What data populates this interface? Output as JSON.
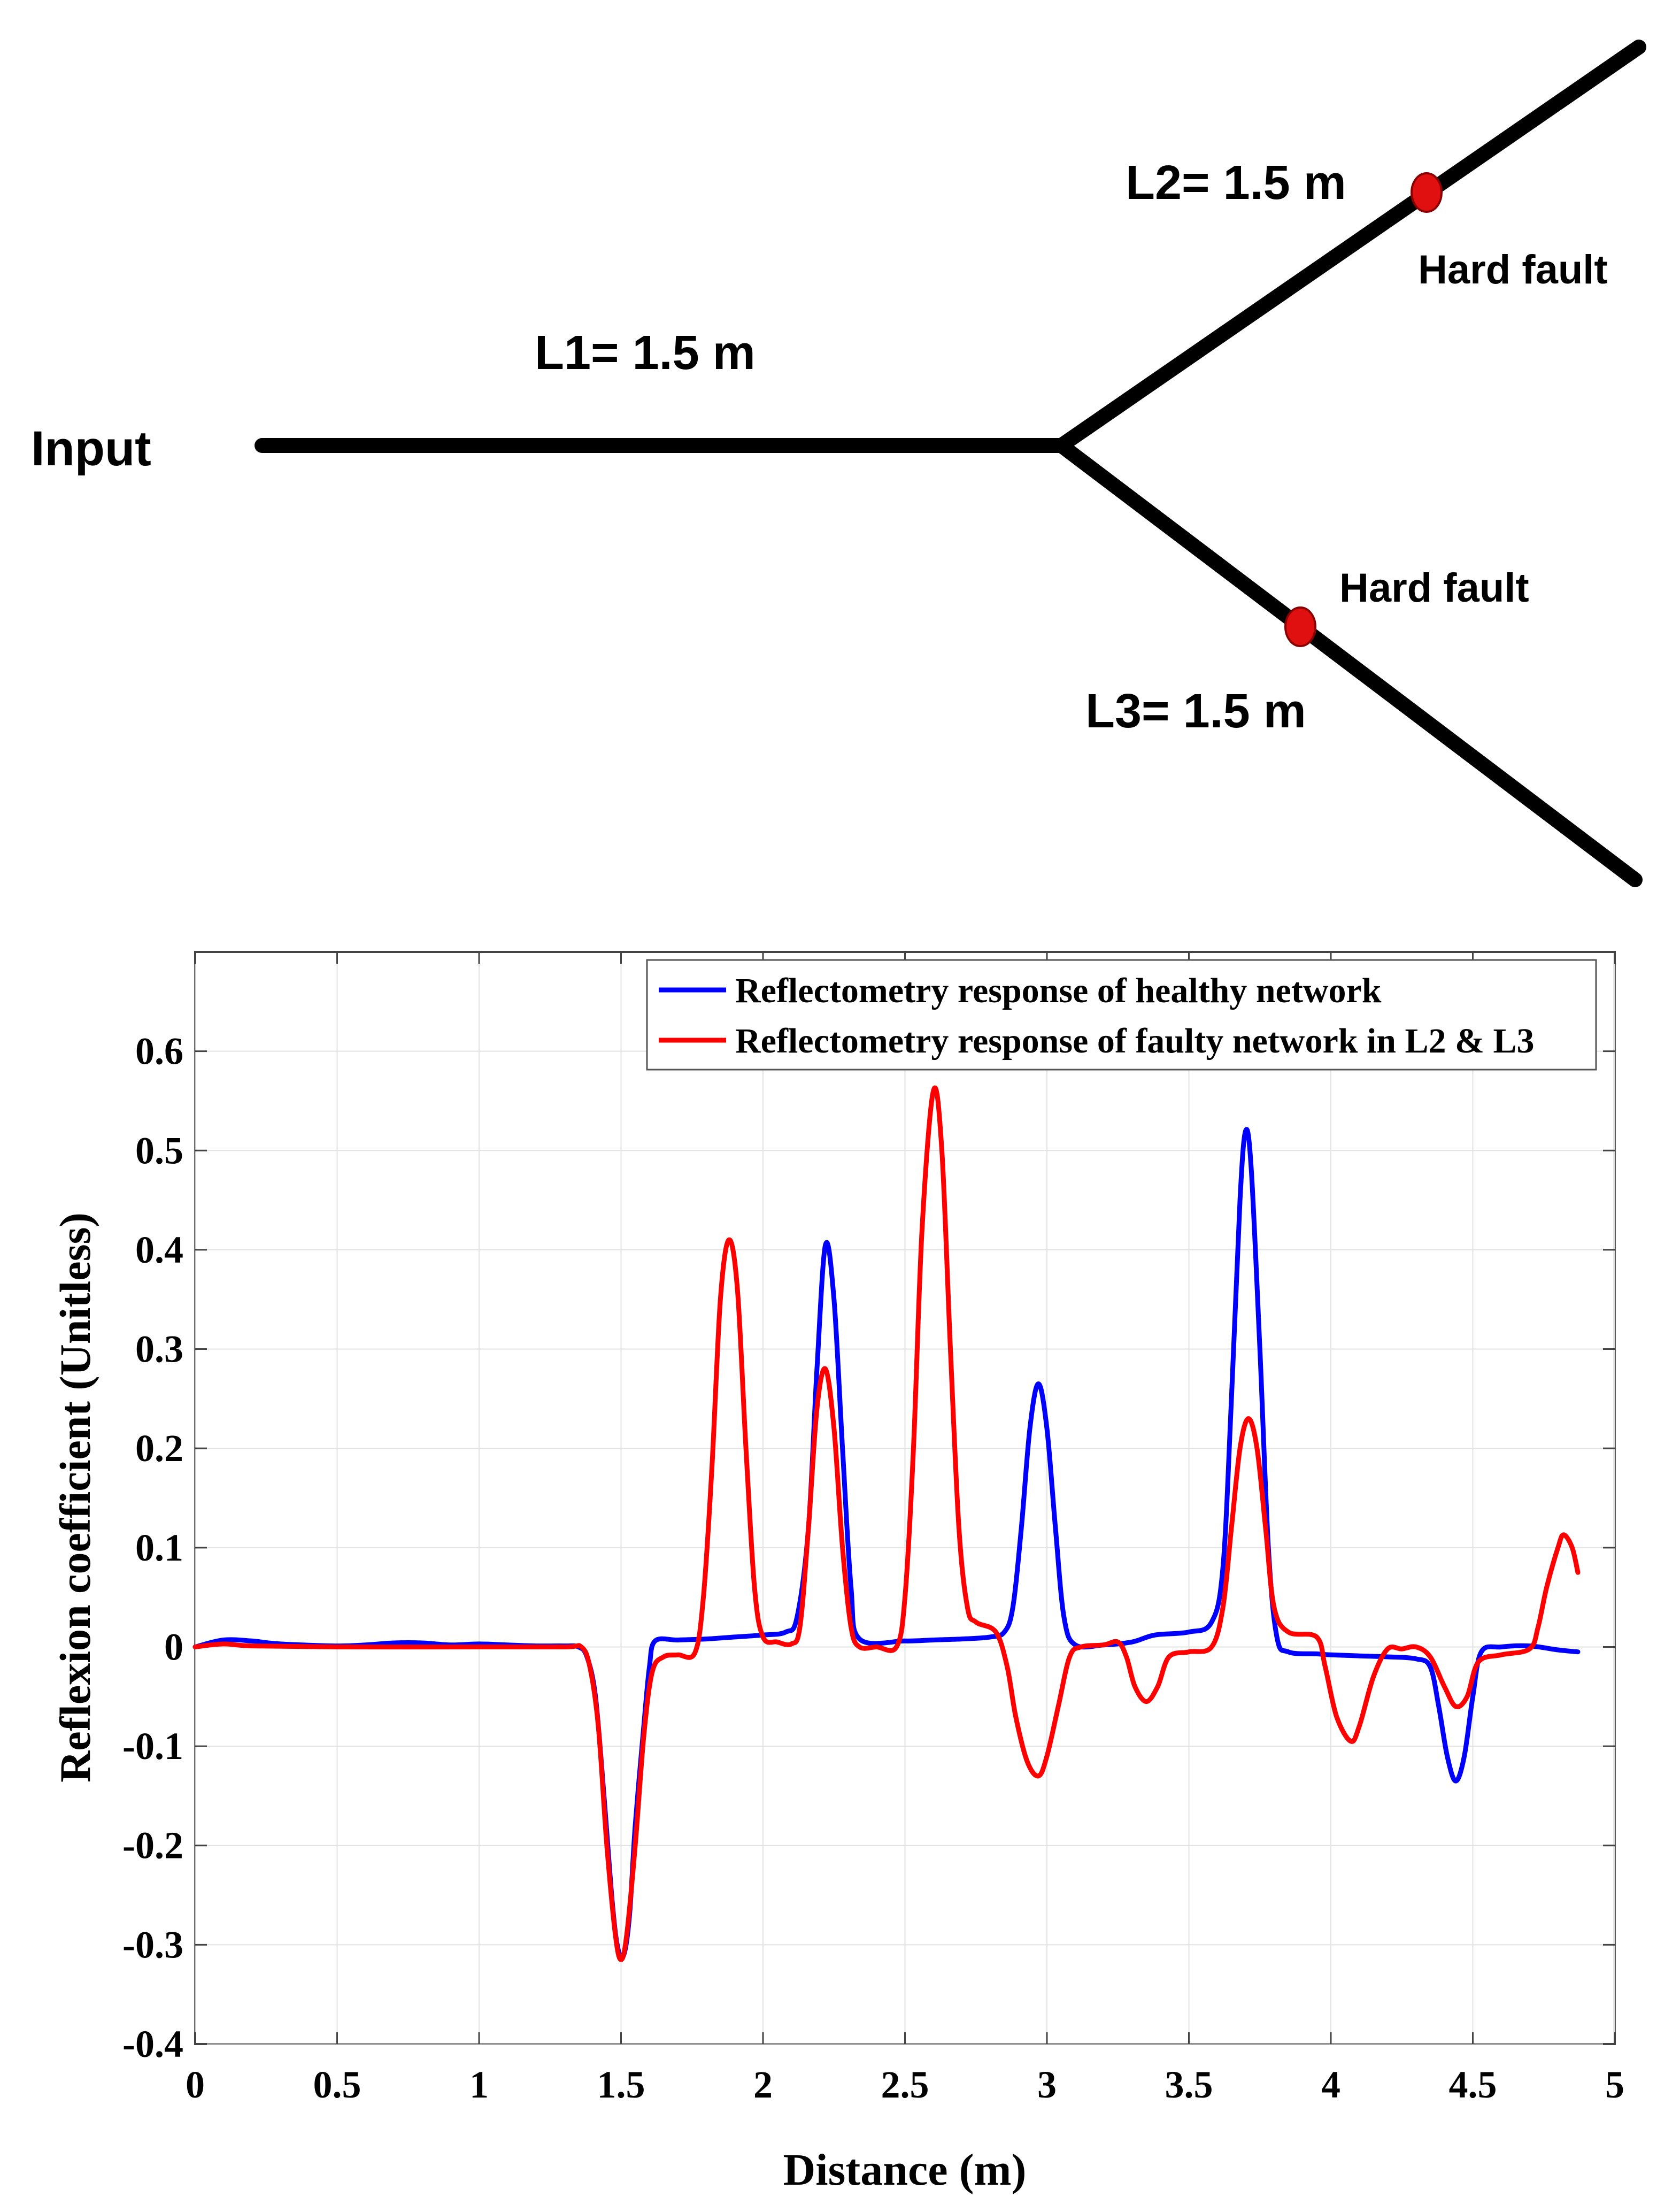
{
  "diagram": {
    "input_label": "Input",
    "segments": [
      {
        "id": "L1",
        "label": "L1= 1.5 m"
      },
      {
        "id": "L2",
        "label": "L2= 1.5 m"
      },
      {
        "id": "L3",
        "label": "L3= 1.5 m"
      }
    ],
    "faults": [
      {
        "branch": "L2",
        "label": "Hard fault"
      },
      {
        "branch": "L3",
        "label": "Hard fault"
      }
    ],
    "fault_color": "#e01010",
    "line_color": "#000000"
  },
  "chart_data": {
    "type": "line",
    "xlabel": "Distance (m)",
    "ylabel": "Reflexion coefficient (Unitless)",
    "xlim": [
      0,
      5
    ],
    "ylim": [
      -0.4,
      0.7
    ],
    "xticks": [
      0,
      0.5,
      1,
      1.5,
      2,
      2.5,
      3,
      3.5,
      4,
      4.5,
      5
    ],
    "xtick_labels": [
      "0",
      "0.5",
      "1",
      "1.5",
      "2",
      "2.5",
      "3",
      "3.5",
      "4",
      "4.5",
      "5"
    ],
    "yticks": [
      -0.4,
      -0.3,
      -0.2,
      -0.1,
      0,
      0.1,
      0.2,
      0.3,
      0.4,
      0.5,
      0.6
    ],
    "ytick_labels": [
      "-0.4",
      "-0.3",
      "-0.2",
      "-0.1",
      "0",
      "0.1",
      "0.2",
      "0.3",
      "0.4",
      "0.5",
      "0.6"
    ],
    "grid": true,
    "legend_position": "top-right",
    "series": [
      {
        "name": "Reflectometry response of healthy network",
        "color": "#0000ff",
        "points": [
          [
            0,
            0
          ],
          [
            0.1,
            0.007
          ],
          [
            0.2,
            0.006
          ],
          [
            0.3,
            0.003
          ],
          [
            0.5,
            0.001
          ],
          [
            0.6,
            0.002
          ],
          [
            0.7,
            0.004
          ],
          [
            0.8,
            0.004
          ],
          [
            0.9,
            0.002
          ],
          [
            1.0,
            0.003
          ],
          [
            1.1,
            0.002
          ],
          [
            1.2,
            0.001
          ],
          [
            1.3,
            0.001
          ],
          [
            1.35,
            0
          ],
          [
            1.38,
            -0.01
          ],
          [
            1.41,
            -0.05
          ],
          [
            1.44,
            -0.15
          ],
          [
            1.47,
            -0.26
          ],
          [
            1.49,
            -0.305
          ],
          [
            1.51,
            -0.31
          ],
          [
            1.53,
            -0.27
          ],
          [
            1.55,
            -0.18
          ],
          [
            1.58,
            -0.08
          ],
          [
            1.6,
            -0.02
          ],
          [
            1.62,
            0.006
          ],
          [
            1.7,
            0.007
          ],
          [
            1.8,
            0.008
          ],
          [
            1.9,
            0.01
          ],
          [
            2.0,
            0.012
          ],
          [
            2.08,
            0.015
          ],
          [
            2.12,
            0.03
          ],
          [
            2.16,
            0.12
          ],
          [
            2.19,
            0.28
          ],
          [
            2.22,
            0.405
          ],
          [
            2.25,
            0.35
          ],
          [
            2.28,
            0.2
          ],
          [
            2.31,
            0.06
          ],
          [
            2.34,
            0.008
          ],
          [
            2.5,
            0.006
          ],
          [
            2.6,
            0.007
          ],
          [
            2.7,
            0.008
          ],
          [
            2.8,
            0.01
          ],
          [
            2.85,
            0.015
          ],
          [
            2.88,
            0.04
          ],
          [
            2.91,
            0.12
          ],
          [
            2.94,
            0.22
          ],
          [
            2.97,
            0.265
          ],
          [
            3.0,
            0.22
          ],
          [
            3.03,
            0.12
          ],
          [
            3.06,
            0.03
          ],
          [
            3.1,
            0.002
          ],
          [
            3.2,
            0.002
          ],
          [
            3.3,
            0.005
          ],
          [
            3.38,
            0.012
          ],
          [
            3.5,
            0.015
          ],
          [
            3.58,
            0.025
          ],
          [
            3.62,
            0.08
          ],
          [
            3.65,
            0.25
          ],
          [
            3.68,
            0.45
          ],
          [
            3.7,
            0.52
          ],
          [
            3.72,
            0.48
          ],
          [
            3.75,
            0.3
          ],
          [
            3.78,
            0.1
          ],
          [
            3.81,
            0.01
          ],
          [
            3.85,
            -0.005
          ],
          [
            3.95,
            -0.007
          ],
          [
            4.0,
            -0.008
          ],
          [
            4.1,
            -0.009
          ],
          [
            4.2,
            -0.01
          ],
          [
            4.3,
            -0.012
          ],
          [
            4.35,
            -0.02
          ],
          [
            4.38,
            -0.06
          ],
          [
            4.41,
            -0.11
          ],
          [
            4.44,
            -0.135
          ],
          [
            4.47,
            -0.11
          ],
          [
            4.5,
            -0.05
          ],
          [
            4.53,
            -0.005
          ],
          [
            4.6,
            0
          ],
          [
            4.7,
            0.001
          ],
          [
            4.8,
            -0.003
          ],
          [
            4.87,
            -0.005
          ]
        ]
      },
      {
        "name": "Reflectometry response of faulty network in L2 & L3",
        "color": "#ff0000",
        "points": [
          [
            0,
            0
          ],
          [
            0.1,
            0.003
          ],
          [
            0.2,
            0.001
          ],
          [
            0.5,
            0
          ],
          [
            1.0,
            0
          ],
          [
            1.3,
            0
          ],
          [
            1.36,
            0
          ],
          [
            1.39,
            -0.02
          ],
          [
            1.42,
            -0.08
          ],
          [
            1.45,
            -0.2
          ],
          [
            1.48,
            -0.29
          ],
          [
            1.5,
            -0.315
          ],
          [
            1.52,
            -0.29
          ],
          [
            1.55,
            -0.2
          ],
          [
            1.58,
            -0.09
          ],
          [
            1.61,
            -0.025
          ],
          [
            1.65,
            -0.01
          ],
          [
            1.7,
            -0.008
          ],
          [
            1.76,
            -0.006
          ],
          [
            1.79,
            0.05
          ],
          [
            1.82,
            0.18
          ],
          [
            1.85,
            0.35
          ],
          [
            1.88,
            0.41
          ],
          [
            1.91,
            0.36
          ],
          [
            1.94,
            0.2
          ],
          [
            1.97,
            0.06
          ],
          [
            2.0,
            0.01
          ],
          [
            2.05,
            0.005
          ],
          [
            2.1,
            0.003
          ],
          [
            2.13,
            0.02
          ],
          [
            2.16,
            0.12
          ],
          [
            2.19,
            0.24
          ],
          [
            2.22,
            0.28
          ],
          [
            2.25,
            0.22
          ],
          [
            2.28,
            0.1
          ],
          [
            2.31,
            0.02
          ],
          [
            2.34,
            0
          ],
          [
            2.4,
            0
          ],
          [
            2.47,
            0
          ],
          [
            2.5,
            0.05
          ],
          [
            2.53,
            0.2
          ],
          [
            2.56,
            0.42
          ],
          [
            2.6,
            0.56
          ],
          [
            2.63,
            0.5
          ],
          [
            2.66,
            0.3
          ],
          [
            2.69,
            0.12
          ],
          [
            2.72,
            0.04
          ],
          [
            2.75,
            0.025
          ],
          [
            2.82,
            0.015
          ],
          [
            2.86,
            -0.02
          ],
          [
            2.89,
            -0.07
          ],
          [
            2.93,
            -0.115
          ],
          [
            2.97,
            -0.13
          ],
          [
            3.0,
            -0.11
          ],
          [
            3.04,
            -0.06
          ],
          [
            3.08,
            -0.01
          ],
          [
            3.12,
            0
          ],
          [
            3.2,
            0.002
          ],
          [
            3.25,
            0.005
          ],
          [
            3.28,
            -0.01
          ],
          [
            3.31,
            -0.04
          ],
          [
            3.35,
            -0.055
          ],
          [
            3.39,
            -0.04
          ],
          [
            3.43,
            -0.01
          ],
          [
            3.5,
            -0.005
          ],
          [
            3.58,
            0
          ],
          [
            3.62,
            0.04
          ],
          [
            3.65,
            0.12
          ],
          [
            3.68,
            0.2
          ],
          [
            3.71,
            0.23
          ],
          [
            3.74,
            0.2
          ],
          [
            3.77,
            0.12
          ],
          [
            3.8,
            0.04
          ],
          [
            3.85,
            0.015
          ],
          [
            3.95,
            0.01
          ],
          [
            3.98,
            -0.02
          ],
          [
            4.02,
            -0.07
          ],
          [
            4.07,
            -0.095
          ],
          [
            4.1,
            -0.08
          ],
          [
            4.15,
            -0.03
          ],
          [
            4.2,
            -0.002
          ],
          [
            4.25,
            -0.002
          ],
          [
            4.3,
            0
          ],
          [
            4.35,
            -0.01
          ],
          [
            4.4,
            -0.04
          ],
          [
            4.44,
            -0.06
          ],
          [
            4.48,
            -0.05
          ],
          [
            4.52,
            -0.015
          ],
          [
            4.6,
            -0.008
          ],
          [
            4.7,
            -0.002
          ],
          [
            4.73,
            0.02
          ],
          [
            4.76,
            0.06
          ],
          [
            4.8,
            0.1
          ],
          [
            4.82,
            0.113
          ],
          [
            4.85,
            0.1
          ],
          [
            4.87,
            0.075
          ]
        ]
      }
    ]
  }
}
